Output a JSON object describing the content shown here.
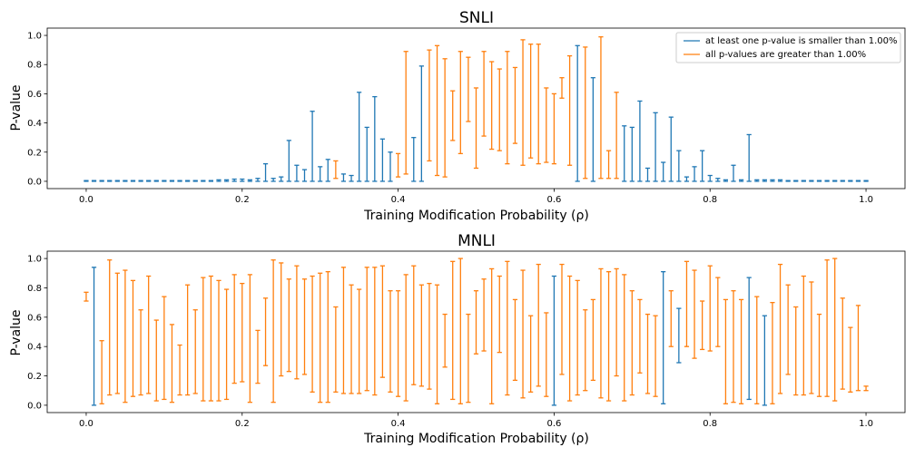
{
  "colors": {
    "significant": "#1f77b4",
    "not_significant": "#ff7f0e"
  },
  "legend": {
    "entries": [
      "at least one p-value is smaller than 1.00%",
      "all p-values are greater than 1.00%"
    ],
    "placement": "top-right"
  },
  "chart_data": [
    {
      "type": "errorbar",
      "title": "SNLI",
      "xlabel": "Training Modification Probability (ρ)",
      "ylabel": "P-value",
      "xlim": [
        -0.05,
        1.05
      ],
      "ylim": [
        -0.05,
        1.05
      ],
      "xticks": [
        "0.0",
        "0.2",
        "0.4",
        "0.6",
        "0.8",
        "1.0"
      ],
      "yticks": [
        "0.0",
        "0.2",
        "0.4",
        "0.6",
        "0.8",
        "1.0"
      ],
      "series": [
        {
          "name": "at least one p-value is smaller than 1.00%",
          "color": "#1f77b4",
          "bars": [
            [
              0.0,
              0,
              0.005
            ],
            [
              0.01,
              0,
              0.005
            ],
            [
              0.02,
              0,
              0.005
            ],
            [
              0.03,
              0,
              0.005
            ],
            [
              0.04,
              0,
              0.005
            ],
            [
              0.05,
              0,
              0.005
            ],
            [
              0.06,
              0,
              0.005
            ],
            [
              0.07,
              0,
              0.005
            ],
            [
              0.08,
              0,
              0.005
            ],
            [
              0.09,
              0,
              0.005
            ],
            [
              0.1,
              0,
              0.005
            ],
            [
              0.11,
              0,
              0.005
            ],
            [
              0.12,
              0,
              0.005
            ],
            [
              0.13,
              0,
              0.005
            ],
            [
              0.14,
              0,
              0.005
            ],
            [
              0.15,
              0,
              0.005
            ],
            [
              0.16,
              0,
              0.005
            ],
            [
              0.17,
              0,
              0.01
            ],
            [
              0.18,
              0,
              0.01
            ],
            [
              0.19,
              0,
              0.015
            ],
            [
              0.2,
              0,
              0.015
            ],
            [
              0.21,
              0,
              0.01
            ],
            [
              0.22,
              0,
              0.02
            ],
            [
              0.23,
              0,
              0.12
            ],
            [
              0.24,
              0,
              0.02
            ],
            [
              0.25,
              0,
              0.03
            ],
            [
              0.26,
              0,
              0.28
            ],
            [
              0.27,
              0,
              0.11
            ],
            [
              0.28,
              0,
              0.08
            ],
            [
              0.29,
              0,
              0.48
            ],
            [
              0.3,
              0,
              0.1
            ],
            [
              0.31,
              0,
              0.15
            ],
            [
              0.33,
              0,
              0.05
            ],
            [
              0.34,
              0,
              0.04
            ],
            [
              0.35,
              0,
              0.61
            ],
            [
              0.36,
              0,
              0.37
            ],
            [
              0.37,
              0,
              0.58
            ],
            [
              0.38,
              0,
              0.29
            ],
            [
              0.39,
              0,
              0.2
            ],
            [
              0.42,
              0,
              0.3
            ],
            [
              0.43,
              0,
              0.79
            ],
            [
              0.63,
              0,
              0.93
            ],
            [
              0.65,
              0,
              0.71
            ],
            [
              0.69,
              0,
              0.38
            ],
            [
              0.7,
              0,
              0.37
            ],
            [
              0.71,
              0,
              0.55
            ],
            [
              0.72,
              0,
              0.09
            ],
            [
              0.73,
              0,
              0.47
            ],
            [
              0.74,
              0,
              0.13
            ],
            [
              0.75,
              0,
              0.44
            ],
            [
              0.76,
              0,
              0.21
            ],
            [
              0.77,
              0,
              0.03
            ],
            [
              0.78,
              0,
              0.1
            ],
            [
              0.79,
              0,
              0.21
            ],
            [
              0.8,
              0,
              0.04
            ],
            [
              0.81,
              0,
              0.02
            ],
            [
              0.82,
              0,
              0.01
            ],
            [
              0.83,
              0,
              0.11
            ],
            [
              0.84,
              0,
              0.01
            ],
            [
              0.85,
              0,
              0.32
            ],
            [
              0.86,
              0,
              0.01
            ],
            [
              0.87,
              0,
              0.01
            ],
            [
              0.88,
              0,
              0.01
            ],
            [
              0.89,
              0,
              0.01
            ],
            [
              0.9,
              0,
              0.005
            ],
            [
              0.91,
              0,
              0.005
            ],
            [
              0.92,
              0,
              0.005
            ],
            [
              0.93,
              0,
              0.005
            ],
            [
              0.94,
              0,
              0.005
            ],
            [
              0.95,
              0,
              0.005
            ],
            [
              0.96,
              0,
              0.005
            ],
            [
              0.97,
              0,
              0.005
            ],
            [
              0.98,
              0,
              0.005
            ],
            [
              0.99,
              0,
              0.005
            ],
            [
              1.0,
              0,
              0.005
            ]
          ]
        },
        {
          "name": "all p-values are greater than 1.00%",
          "color": "#ff7f0e",
          "bars": [
            [
              0.32,
              0.02,
              0.14
            ],
            [
              0.4,
              0.03,
              0.19
            ],
            [
              0.41,
              0.05,
              0.89
            ],
            [
              0.44,
              0.14,
              0.9
            ],
            [
              0.45,
              0.04,
              0.93
            ],
            [
              0.46,
              0.03,
              0.84
            ],
            [
              0.47,
              0.28,
              0.62
            ],
            [
              0.48,
              0.19,
              0.89
            ],
            [
              0.49,
              0.41,
              0.85
            ],
            [
              0.5,
              0.09,
              0.64
            ],
            [
              0.51,
              0.31,
              0.89
            ],
            [
              0.52,
              0.22,
              0.82
            ],
            [
              0.53,
              0.21,
              0.77
            ],
            [
              0.54,
              0.12,
              0.89
            ],
            [
              0.55,
              0.26,
              0.78
            ],
            [
              0.56,
              0.11,
              0.97
            ],
            [
              0.57,
              0.16,
              0.94
            ],
            [
              0.58,
              0.12,
              0.94
            ],
            [
              0.59,
              0.13,
              0.64
            ],
            [
              0.6,
              0.12,
              0.6
            ],
            [
              0.61,
              0.57,
              0.71
            ],
            [
              0.62,
              0.11,
              0.86
            ],
            [
              0.64,
              0.02,
              0.92
            ],
            [
              0.66,
              0.02,
              0.99
            ],
            [
              0.67,
              0.02,
              0.21
            ],
            [
              0.68,
              0.02,
              0.61
            ]
          ]
        }
      ]
    },
    {
      "type": "errorbar",
      "title": "MNLI",
      "xlabel": "Training Modification Probability (ρ)",
      "ylabel": "P-value",
      "xlim": [
        -0.05,
        1.05
      ],
      "ylim": [
        -0.05,
        1.05
      ],
      "xticks": [
        "0.0",
        "0.2",
        "0.4",
        "0.6",
        "0.8",
        "1.0"
      ],
      "yticks": [
        "0.0",
        "0.2",
        "0.4",
        "0.6",
        "0.8",
        "1.0"
      ],
      "series": [
        {
          "name": "at least one p-value is smaller than 1.00%",
          "color": "#1f77b4",
          "bars": [
            [
              0.01,
              0.0,
              0.94
            ],
            [
              0.6,
              0.0,
              0.88
            ],
            [
              0.74,
              0.01,
              0.91
            ],
            [
              0.76,
              0.29,
              0.66
            ],
            [
              0.85,
              0.04,
              0.87
            ],
            [
              0.87,
              0.0,
              0.61
            ]
          ]
        },
        {
          "name": "all p-values are greater than 1.00%",
          "color": "#ff7f0e",
          "bars": [
            [
              0.0,
              0.71,
              0.77
            ],
            [
              0.02,
              0.01,
              0.44
            ],
            [
              0.03,
              0.07,
              0.99
            ],
            [
              0.04,
              0.08,
              0.9
            ],
            [
              0.05,
              0.02,
              0.92
            ],
            [
              0.06,
              0.06,
              0.85
            ],
            [
              0.07,
              0.07,
              0.65
            ],
            [
              0.08,
              0.08,
              0.88
            ],
            [
              0.09,
              0.03,
              0.58
            ],
            [
              0.1,
              0.04,
              0.74
            ],
            [
              0.11,
              0.02,
              0.55
            ],
            [
              0.12,
              0.07,
              0.41
            ],
            [
              0.13,
              0.07,
              0.82
            ],
            [
              0.14,
              0.08,
              0.65
            ],
            [
              0.15,
              0.03,
              0.87
            ],
            [
              0.16,
              0.03,
              0.88
            ],
            [
              0.17,
              0.03,
              0.85
            ],
            [
              0.18,
              0.04,
              0.79
            ],
            [
              0.19,
              0.15,
              0.89
            ],
            [
              0.2,
              0.16,
              0.83
            ],
            [
              0.21,
              0.02,
              0.89
            ],
            [
              0.22,
              0.15,
              0.51
            ],
            [
              0.23,
              0.27,
              0.73
            ],
            [
              0.24,
              0.02,
              0.99
            ],
            [
              0.25,
              0.2,
              0.97
            ],
            [
              0.26,
              0.23,
              0.86
            ],
            [
              0.27,
              0.18,
              0.95
            ],
            [
              0.28,
              0.21,
              0.86
            ],
            [
              0.29,
              0.09,
              0.88
            ],
            [
              0.3,
              0.02,
              0.9
            ],
            [
              0.31,
              0.02,
              0.91
            ],
            [
              0.32,
              0.09,
              0.67
            ],
            [
              0.33,
              0.08,
              0.94
            ],
            [
              0.34,
              0.08,
              0.82
            ],
            [
              0.35,
              0.08,
              0.79
            ],
            [
              0.36,
              0.1,
              0.94
            ],
            [
              0.37,
              0.07,
              0.94
            ],
            [
              0.38,
              0.19,
              0.95
            ],
            [
              0.39,
              0.09,
              0.78
            ],
            [
              0.4,
              0.06,
              0.78
            ],
            [
              0.41,
              0.03,
              0.89
            ],
            [
              0.42,
              0.14,
              0.95
            ],
            [
              0.43,
              0.13,
              0.82
            ],
            [
              0.44,
              0.11,
              0.83
            ],
            [
              0.45,
              0.01,
              0.82
            ],
            [
              0.46,
              0.26,
              0.62
            ],
            [
              0.47,
              0.04,
              0.98
            ],
            [
              0.48,
              0.01,
              1.0
            ],
            [
              0.49,
              0.02,
              0.62
            ],
            [
              0.5,
              0.35,
              0.78
            ],
            [
              0.51,
              0.37,
              0.86
            ],
            [
              0.52,
              0.01,
              0.93
            ],
            [
              0.53,
              0.36,
              0.88
            ],
            [
              0.54,
              0.07,
              0.98
            ],
            [
              0.55,
              0.17,
              0.72
            ],
            [
              0.56,
              0.05,
              0.92
            ],
            [
              0.57,
              0.09,
              0.61
            ],
            [
              0.58,
              0.13,
              0.96
            ],
            [
              0.59,
              0.06,
              0.63
            ],
            [
              0.61,
              0.21,
              0.96
            ],
            [
              0.62,
              0.03,
              0.88
            ],
            [
              0.63,
              0.07,
              0.85
            ],
            [
              0.64,
              0.1,
              0.65
            ],
            [
              0.65,
              0.17,
              0.72
            ],
            [
              0.66,
              0.05,
              0.93
            ],
            [
              0.67,
              0.03,
              0.91
            ],
            [
              0.68,
              0.2,
              0.93
            ],
            [
              0.69,
              0.03,
              0.89
            ],
            [
              0.7,
              0.07,
              0.78
            ],
            [
              0.71,
              0.22,
              0.72
            ],
            [
              0.72,
              0.08,
              0.62
            ],
            [
              0.73,
              0.06,
              0.61
            ],
            [
              0.75,
              0.4,
              0.78
            ],
            [
              0.77,
              0.4,
              0.98
            ],
            [
              0.78,
              0.32,
              0.92
            ],
            [
              0.79,
              0.38,
              0.71
            ],
            [
              0.8,
              0.37,
              0.95
            ],
            [
              0.81,
              0.4,
              0.87
            ],
            [
              0.82,
              0.01,
              0.72
            ],
            [
              0.83,
              0.02,
              0.78
            ],
            [
              0.84,
              0.01,
              0.72
            ],
            [
              0.86,
              0.01,
              0.74
            ],
            [
              0.88,
              0.01,
              0.7
            ],
            [
              0.89,
              0.08,
              0.96
            ],
            [
              0.9,
              0.21,
              0.82
            ],
            [
              0.91,
              0.07,
              0.67
            ],
            [
              0.92,
              0.07,
              0.88
            ],
            [
              0.93,
              0.08,
              0.84
            ],
            [
              0.94,
              0.06,
              0.62
            ],
            [
              0.95,
              0.06,
              0.99
            ],
            [
              0.96,
              0.03,
              1.0
            ],
            [
              0.97,
              0.11,
              0.73
            ],
            [
              0.98,
              0.09,
              0.53
            ],
            [
              0.99,
              0.1,
              0.68
            ],
            [
              1.0,
              0.1,
              0.13
            ]
          ]
        }
      ]
    }
  ]
}
